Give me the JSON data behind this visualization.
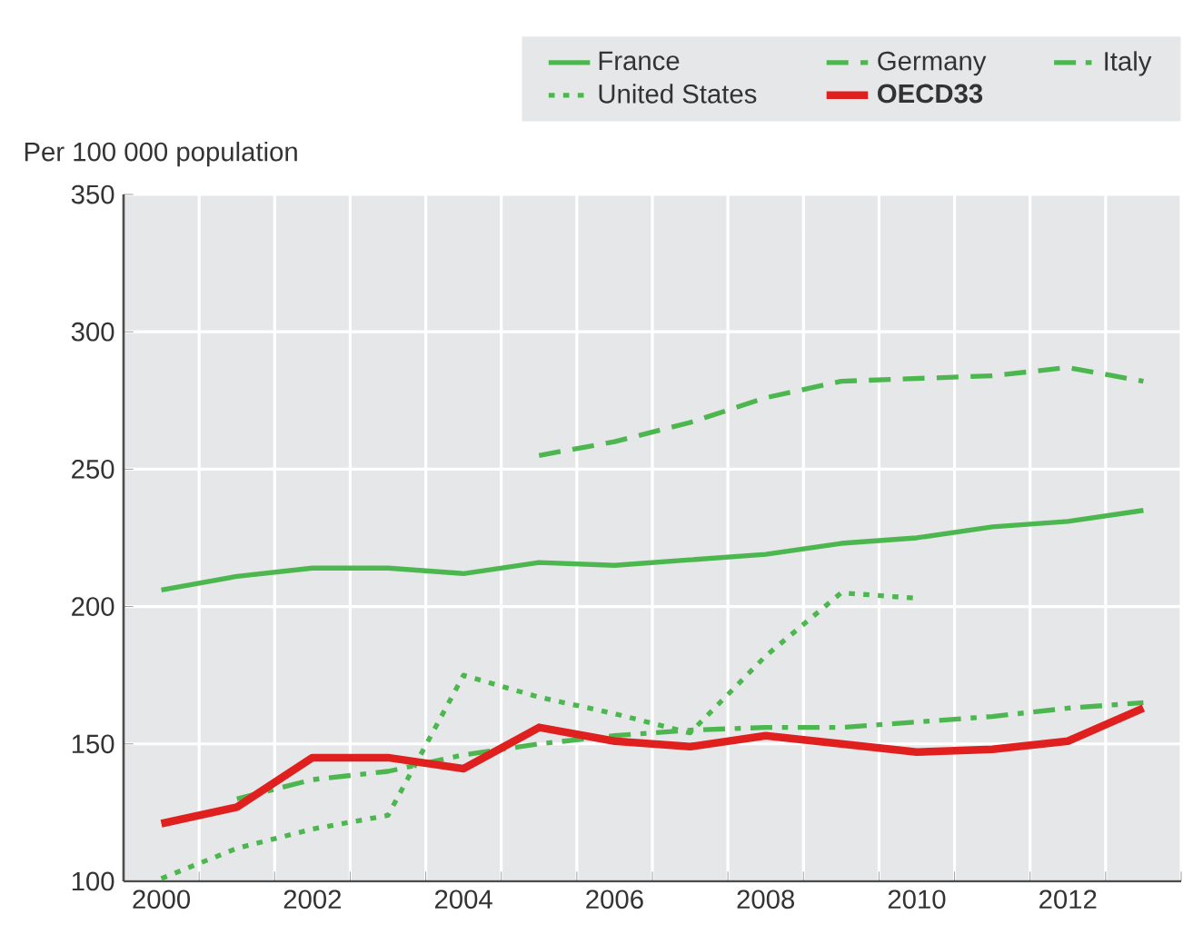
{
  "chart_data": {
    "type": "line",
    "ylabel": "Per 100 000 population",
    "categories": [
      "2000",
      null,
      "2002",
      null,
      "2004",
      null,
      "2006",
      null,
      "2008",
      null,
      "2010",
      null,
      "2012",
      null
    ],
    "series": [
      {
        "name": "France",
        "color": "#4cb74f",
        "line_style": "solid",
        "values": [
          206,
          211,
          214,
          214,
          212,
          216,
          215,
          217,
          219,
          223,
          225,
          229,
          231,
          235
        ]
      },
      {
        "name": "Germany",
        "color": "#4cb74f",
        "line_style": "dashed",
        "values": [
          null,
          null,
          null,
          null,
          null,
          255,
          260,
          267,
          276,
          282,
          283,
          284,
          287,
          282
        ]
      },
      {
        "name": "Italy",
        "color": "#4cb74f",
        "line_style": "dashdot",
        "values": [
          null,
          130,
          137,
          140,
          146,
          150,
          153,
          155,
          156,
          156,
          158,
          160,
          163,
          165
        ]
      },
      {
        "name": "United States",
        "color": "#4cb74f",
        "line_style": "dotted",
        "values": [
          101,
          112,
          119,
          124,
          175,
          167,
          161,
          154,
          182,
          205,
          203,
          null,
          null,
          null
        ]
      },
      {
        "name": "OECD33",
        "color": "#e0201e",
        "line_style": "solid",
        "values": [
          121,
          127,
          145,
          145,
          141,
          156,
          151,
          149,
          153,
          150,
          147,
          148,
          151,
          163
        ]
      }
    ],
    "ylim": [
      100,
      350
    ],
    "yticks": [
      100,
      150,
      200,
      250,
      300,
      350
    ],
    "grid": true,
    "legend": "top"
  }
}
